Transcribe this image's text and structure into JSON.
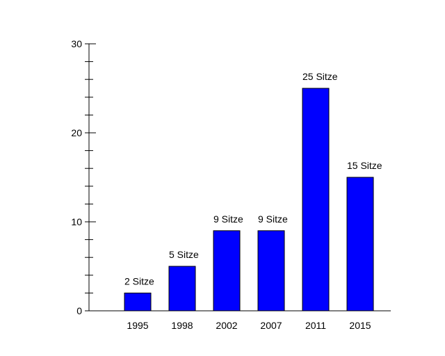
{
  "chart_data": {
    "type": "bar",
    "title": "",
    "xlabel": "",
    "ylabel": "",
    "ylim": [
      0,
      30
    ],
    "y_major_ticks": [
      0,
      10,
      20,
      30
    ],
    "y_minor_step": 2,
    "grid": false,
    "bar_color": "#0000ff",
    "axis_color": "#000000",
    "bars": [
      {
        "category": "1995",
        "value": 2,
        "label": "2 Sitze"
      },
      {
        "category": "1998",
        "value": 5,
        "label": "5 Sitze"
      },
      {
        "category": "2002",
        "value": 9,
        "label": "9 Sitze"
      },
      {
        "category": "2007",
        "value": 9,
        "label": "9 Sitze"
      },
      {
        "category": "2011",
        "value": 25,
        "label": "25 Sitze"
      },
      {
        "category": "2015",
        "value": 15,
        "label": "15 Sitze"
      }
    ]
  }
}
